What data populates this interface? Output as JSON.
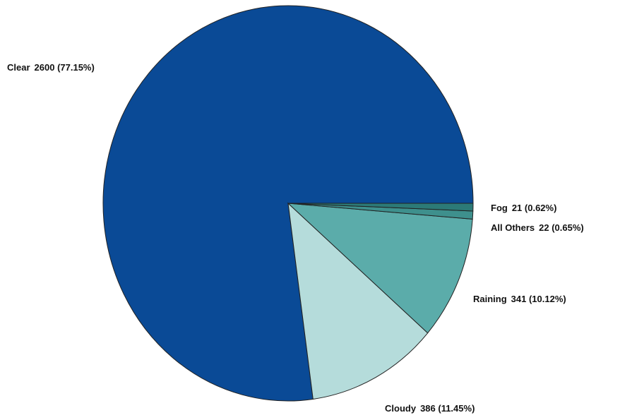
{
  "chart_data": {
    "type": "pie",
    "categories": [
      "Clear",
      "Cloudy",
      "Raining",
      "All Others",
      "Fog"
    ],
    "values": [
      2600,
      386,
      341,
      22,
      21
    ],
    "value_labels": [
      "2600 (77.15%)",
      "386 (11.45%)",
      "341 (10.12%)",
      "22 (0.65%)",
      "21 (0.62%)"
    ],
    "colors": [
      "#0a4a96",
      "#b5dcdb",
      "#5bacaa",
      "#3e908d",
      "#2c7a77"
    ]
  }
}
